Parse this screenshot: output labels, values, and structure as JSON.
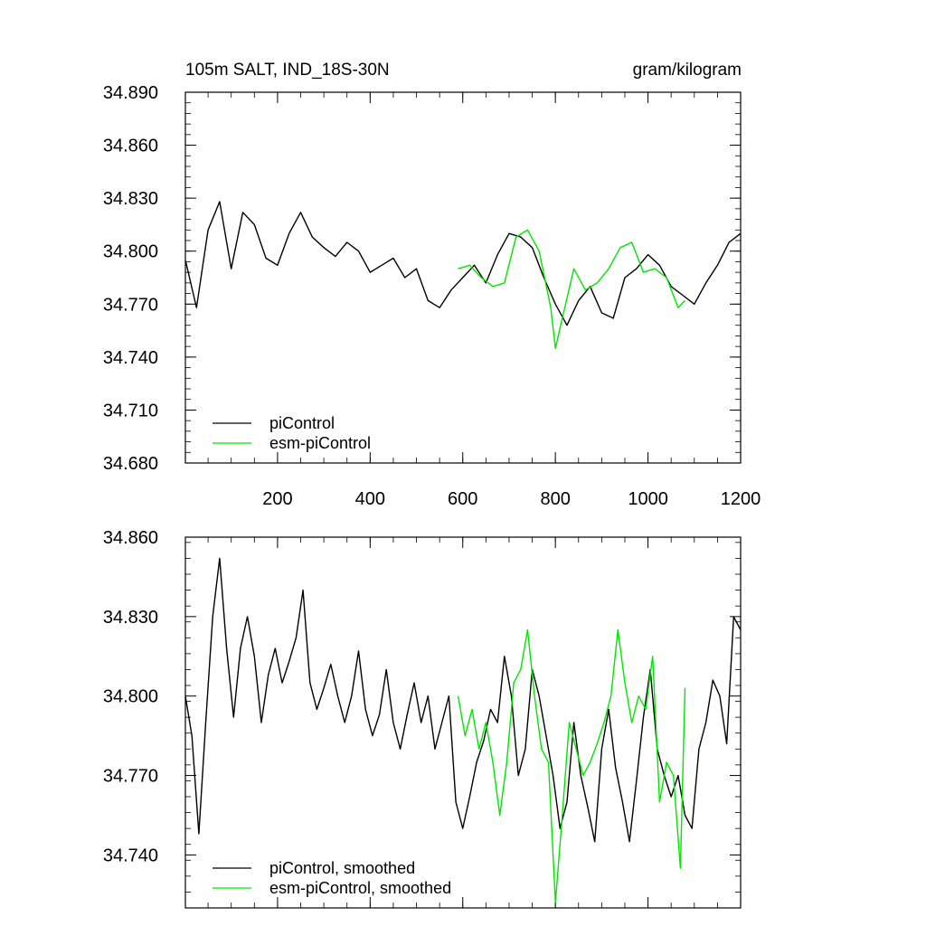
{
  "chart_data": [
    {
      "type": "line",
      "title": "105m SALT, IND_18S-30N",
      "units": "gram/kilogram",
      "xlim": [
        1,
        1200
      ],
      "ylim": [
        34.68,
        34.89
      ],
      "xticks": [
        200,
        400,
        600,
        800,
        1000,
        1200
      ],
      "xtick_labels": [
        "200",
        "400",
        "600",
        "800",
        "1000",
        "1200"
      ],
      "yticks": [
        34.68,
        34.71,
        34.74,
        34.77,
        34.8,
        34.83,
        34.86,
        34.89
      ],
      "ytick_labels": [
        "34.680",
        "34.710",
        "34.740",
        "34.770",
        "34.800",
        "34.830",
        "34.860",
        "34.890"
      ],
      "legend_position": "bottom-left",
      "series": [
        {
          "name": "piControl",
          "color": "#000000",
          "x": [
            1,
            25,
            50,
            75,
            100,
            125,
            150,
            175,
            200,
            225,
            250,
            275,
            300,
            325,
            350,
            375,
            400,
            425,
            450,
            475,
            500,
            525,
            550,
            575,
            600,
            625,
            650,
            675,
            700,
            725,
            750,
            775,
            800,
            825,
            850,
            875,
            900,
            925,
            950,
            975,
            1000,
            1025,
            1050,
            1075,
            1100,
            1125,
            1150,
            1175,
            1200
          ],
          "y": [
            34.795,
            34.768,
            34.812,
            34.828,
            34.79,
            34.822,
            34.815,
            34.796,
            34.792,
            34.81,
            34.822,
            34.808,
            34.802,
            34.797,
            34.805,
            34.8,
            34.788,
            34.792,
            34.796,
            34.785,
            34.79,
            34.772,
            34.768,
            34.778,
            34.785,
            34.792,
            34.782,
            34.798,
            34.81,
            34.808,
            34.802,
            34.785,
            34.77,
            34.758,
            34.772,
            34.78,
            34.765,
            34.762,
            34.785,
            34.79,
            34.798,
            34.792,
            34.78,
            34.775,
            34.77,
            34.782,
            34.792,
            34.805,
            34.81
          ]
        },
        {
          "name": "esm-piControl",
          "color": "#00e600",
          "x": [
            590,
            615,
            640,
            665,
            690,
            715,
            740,
            765,
            790,
            800,
            815,
            840,
            865,
            890,
            915,
            940,
            965,
            990,
            1015,
            1040,
            1065,
            1080
          ],
          "y": [
            34.79,
            34.792,
            34.785,
            34.78,
            34.782,
            34.808,
            34.812,
            34.8,
            34.768,
            34.745,
            34.762,
            34.79,
            34.778,
            34.782,
            34.79,
            34.802,
            34.805,
            34.788,
            34.79,
            34.785,
            34.768,
            34.772
          ]
        }
      ]
    },
    {
      "type": "line",
      "xlim": [
        1,
        1200
      ],
      "ylim": [
        34.72,
        34.86
      ],
      "yticks": [
        34.74,
        34.77,
        34.8,
        34.83,
        34.86
      ],
      "ytick_labels": [
        "34.740",
        "34.770",
        "34.800",
        "34.830",
        "34.860"
      ],
      "legend_position": "bottom-left",
      "series": [
        {
          "name": "piControl, smoothed",
          "color": "#000000",
          "x": [
            1,
            15,
            30,
            45,
            60,
            75,
            90,
            105,
            120,
            135,
            150,
            165,
            180,
            195,
            210,
            225,
            240,
            255,
            270,
            285,
            300,
            315,
            330,
            345,
            360,
            375,
            390,
            405,
            420,
            435,
            450,
            465,
            480,
            495,
            510,
            525,
            540,
            555,
            570,
            585,
            600,
            615,
            630,
            645,
            660,
            675,
            690,
            705,
            720,
            735,
            750,
            765,
            780,
            795,
            810,
            825,
            840,
            855,
            870,
            885,
            900,
            915,
            930,
            945,
            960,
            975,
            990,
            1005,
            1020,
            1035,
            1050,
            1065,
            1080,
            1095,
            1110,
            1125,
            1140,
            1155,
            1170,
            1185,
            1200
          ],
          "y": [
            34.8,
            34.785,
            34.748,
            34.79,
            34.83,
            34.852,
            34.818,
            34.792,
            34.818,
            34.83,
            34.815,
            34.79,
            34.808,
            34.818,
            34.805,
            34.813,
            34.822,
            34.84,
            34.805,
            34.795,
            34.803,
            34.812,
            34.8,
            34.79,
            34.8,
            34.817,
            34.795,
            34.785,
            34.793,
            34.81,
            34.79,
            34.78,
            34.793,
            34.805,
            34.79,
            34.8,
            34.78,
            34.79,
            34.8,
            34.76,
            34.75,
            34.762,
            34.775,
            34.783,
            34.795,
            34.79,
            34.815,
            34.8,
            34.77,
            34.78,
            34.81,
            34.8,
            34.785,
            34.77,
            34.75,
            34.76,
            34.79,
            34.77,
            34.758,
            34.745,
            34.78,
            34.795,
            34.773,
            34.76,
            34.745,
            34.768,
            34.792,
            34.81,
            34.78,
            34.77,
            34.762,
            34.77,
            34.755,
            34.75,
            34.78,
            34.79,
            34.806,
            34.8,
            34.782,
            34.83,
            34.825
          ]
        },
        {
          "name": "esm-piControl, smoothed",
          "color": "#00e600",
          "x": [
            590,
            605,
            620,
            635,
            650,
            665,
            680,
            695,
            710,
            725,
            740,
            755,
            770,
            785,
            800,
            815,
            830,
            845,
            860,
            875,
            890,
            905,
            920,
            935,
            950,
            965,
            980,
            995,
            1010,
            1025,
            1040,
            1055,
            1070,
            1080
          ],
          "y": [
            34.8,
            34.785,
            34.795,
            34.78,
            34.79,
            34.775,
            34.755,
            34.775,
            34.805,
            34.81,
            34.825,
            34.8,
            34.78,
            34.775,
            34.722,
            34.755,
            34.79,
            34.78,
            34.77,
            34.775,
            34.782,
            34.79,
            34.8,
            34.825,
            34.805,
            34.79,
            34.8,
            34.795,
            34.815,
            34.76,
            34.775,
            34.77,
            34.735,
            34.803
          ]
        }
      ]
    }
  ]
}
